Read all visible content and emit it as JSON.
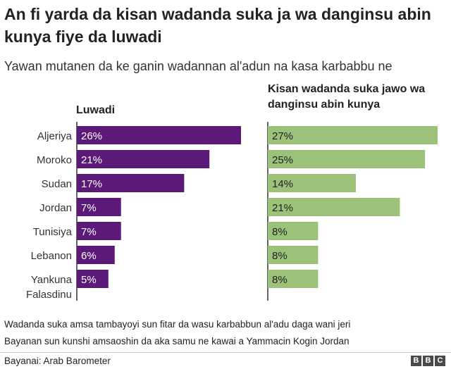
{
  "title": "An fi yarda da kisan wadanda suka ja wa danginsu abin kunya fiye da luwadi",
  "subtitle": "Yawan mutanen da ke ganin wadannan al'adun na kasa karbabbu ne",
  "notes": [
    "Wadanda suka amsa tambayoyi sun fitar da wasu karbabbun al'adu daga wani jeri",
    "Bayanan sun kunshi amsaoshin da aka samu ne kawai a Yammacin Kogin Jordan"
  ],
  "source": "Bayanai: Arab Barometer",
  "logo_letters": [
    "B",
    "B",
    "C"
  ],
  "chart_data": {
    "type": "bar",
    "orientation": "horizontal",
    "categories": [
      "Aljeriya",
      "Moroko",
      "Sudan",
      "Jordan",
      "Tunisiya",
      "Lebanon",
      "Yankuna Falasdinu"
    ],
    "series": [
      {
        "name": "Luwadi",
        "color": "#5b1a79",
        "values": [
          26,
          21,
          17,
          7,
          7,
          6,
          5
        ],
        "labels": [
          "26%",
          "21%",
          "17%",
          "7%",
          "7%",
          "6%",
          "5%"
        ]
      },
      {
        "name": "Kisan wadanda suka jawo wa danginsu abin kunya",
        "color": "#9cc27a",
        "values": [
          27,
          25,
          14,
          21,
          8,
          8,
          8
        ],
        "labels": [
          "27%",
          "25%",
          "14%",
          "21%",
          "8%",
          "8%",
          "8%"
        ]
      }
    ],
    "xlim": [
      0,
      30
    ],
    "unit": "%"
  }
}
